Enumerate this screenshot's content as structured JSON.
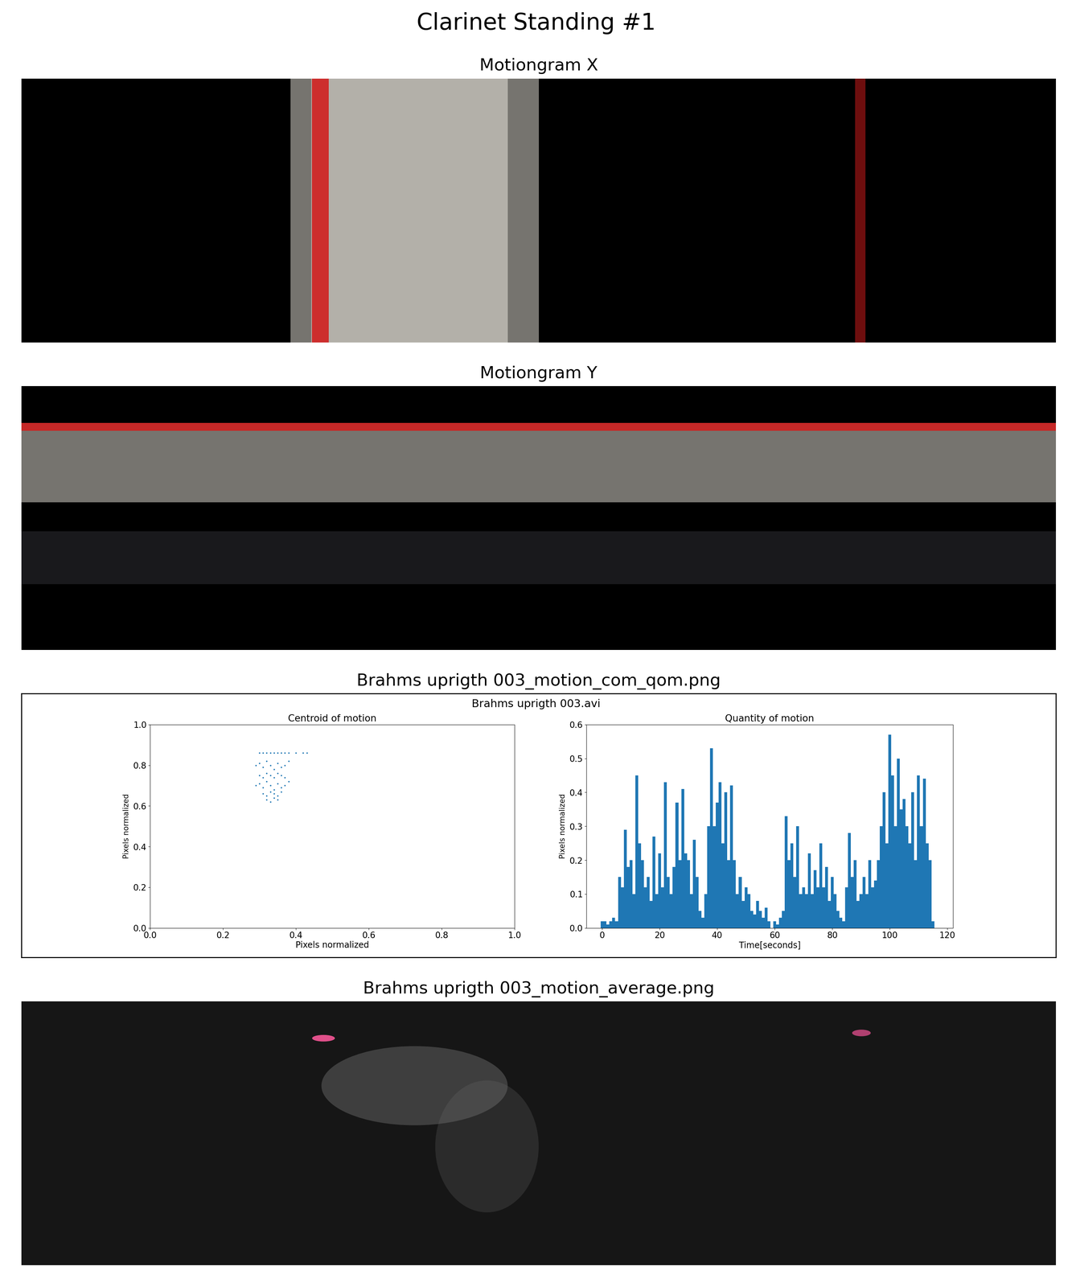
{
  "title": "Clarinet Standing #1",
  "panels": [
    {
      "title": "Motiongram X"
    },
    {
      "title": "Motiongram Y"
    },
    {
      "title": "Brahms uprigth 003_motion_com_qom.png",
      "subtitle": "Brahms uprigth 003.avi"
    },
    {
      "title": "Brahms uprigth 003_motion_average.png"
    }
  ],
  "chart_data": [
    {
      "type": "scatter",
      "title": "Centroid of motion",
      "x_label": "Pixels normalized",
      "y_label": "Pixels normalized",
      "x": [
        0.3,
        0.31,
        0.32,
        0.33,
        0.34,
        0.35,
        0.36,
        0.37,
        0.38,
        0.4,
        0.42,
        0.43,
        0.29,
        0.3,
        0.31,
        0.32,
        0.33,
        0.34,
        0.35,
        0.36,
        0.37,
        0.38,
        0.3,
        0.31,
        0.32,
        0.33,
        0.34,
        0.35,
        0.36,
        0.37,
        0.29,
        0.3,
        0.31,
        0.32,
        0.33,
        0.34,
        0.35,
        0.36,
        0.37,
        0.38,
        0.31,
        0.32,
        0.33,
        0.34,
        0.35,
        0.36,
        0.32,
        0.33,
        0.34,
        0.35
      ],
      "values": [
        0.86,
        0.86,
        0.86,
        0.86,
        0.86,
        0.86,
        0.86,
        0.86,
        0.86,
        0.86,
        0.86,
        0.86,
        0.8,
        0.81,
        0.79,
        0.82,
        0.8,
        0.78,
        0.81,
        0.79,
        0.8,
        0.82,
        0.75,
        0.74,
        0.76,
        0.75,
        0.74,
        0.76,
        0.75,
        0.74,
        0.7,
        0.71,
        0.69,
        0.72,
        0.7,
        0.68,
        0.71,
        0.69,
        0.7,
        0.72,
        0.66,
        0.65,
        0.67,
        0.66,
        0.65,
        0.67,
        0.63,
        0.62,
        0.64,
        0.63
      ],
      "color": "#1f77b4",
      "marker": "point",
      "xlim": [
        0,
        1
      ],
      "ylim": [
        0,
        1
      ],
      "xticks": [
        {
          "value": 0,
          "label": "0.0"
        },
        {
          "value": 0.2,
          "label": "0.2"
        },
        {
          "value": 0.4,
          "label": "0.4"
        },
        {
          "value": 0.6,
          "label": "0.6"
        },
        {
          "value": 0.8,
          "label": "0.8"
        },
        {
          "value": 1,
          "label": "1.0"
        }
      ],
      "yticks": [
        {
          "value": 0,
          "label": "0.0"
        },
        {
          "value": 0.2,
          "label": "0.2"
        },
        {
          "value": 0.4,
          "label": "0.4"
        },
        {
          "value": 0.6,
          "label": "0.6"
        },
        {
          "value": 0.8,
          "label": "0.8"
        },
        {
          "value": 1,
          "label": "1.0"
        }
      ]
    },
    {
      "type": "bar",
      "title": "Quantity of motion",
      "x_label": "Time[seconds]",
      "y_label": "Pixels normalized",
      "x": [
        0,
        1,
        2,
        3,
        4,
        5,
        6,
        7,
        8,
        9,
        10,
        11,
        12,
        13,
        14,
        15,
        16,
        17,
        18,
        19,
        20,
        21,
        22,
        23,
        24,
        25,
        26,
        27,
        28,
        29,
        30,
        31,
        32,
        33,
        34,
        35,
        36,
        37,
        38,
        39,
        40,
        41,
        42,
        43,
        44,
        45,
        46,
        47,
        48,
        49,
        50,
        51,
        52,
        53,
        54,
        55,
        56,
        57,
        58,
        59,
        60,
        61,
        62,
        63,
        64,
        65,
        66,
        67,
        68,
        69,
        70,
        71,
        72,
        73,
        74,
        75,
        76,
        77,
        78,
        79,
        80,
        81,
        82,
        83,
        84,
        85,
        86,
        87,
        88,
        89,
        90,
        91,
        92,
        93,
        94,
        95,
        96,
        97,
        98,
        99,
        100,
        101,
        102,
        103,
        104,
        105,
        106,
        107,
        108,
        109,
        110,
        111,
        112,
        113,
        114,
        115
      ],
      "values": [
        0.02,
        0.02,
        0.01,
        0.02,
        0.03,
        0.02,
        0.15,
        0.12,
        0.29,
        0.18,
        0.2,
        0.1,
        0.45,
        0.25,
        0.2,
        0.12,
        0.15,
        0.08,
        0.27,
        0.1,
        0.22,
        0.12,
        0.43,
        0.15,
        0.1,
        0.18,
        0.37,
        0.2,
        0.41,
        0.22,
        0.2,
        0.1,
        0.26,
        0.15,
        0.05,
        0.03,
        0.1,
        0.3,
        0.53,
        0.3,
        0.37,
        0.43,
        0.25,
        0.4,
        0.2,
        0.42,
        0.2,
        0.1,
        0.15,
        0.08,
        0.12,
        0.1,
        0.05,
        0.04,
        0.08,
        0.05,
        0.03,
        0.06,
        0.02,
        0.0,
        0.02,
        0.01,
        0.03,
        0.05,
        0.33,
        0.2,
        0.25,
        0.15,
        0.3,
        0.1,
        0.12,
        0.1,
        0.22,
        0.1,
        0.17,
        0.12,
        0.25,
        0.12,
        0.18,
        0.08,
        0.15,
        0.1,
        0.05,
        0.03,
        0.02,
        0.12,
        0.28,
        0.15,
        0.2,
        0.08,
        0.1,
        0.15,
        0.1,
        0.2,
        0.12,
        0.14,
        0.2,
        0.3,
        0.4,
        0.25,
        0.57,
        0.45,
        0.3,
        0.5,
        0.35,
        0.38,
        0.3,
        0.25,
        0.4,
        0.2,
        0.45,
        0.3,
        0.44,
        0.25,
        0.2,
        0.02
      ],
      "color": "#1f77b4",
      "xlim": [
        -5.5,
        122
      ],
      "ylim": [
        0,
        0.6
      ],
      "xticks": [
        0,
        20,
        40,
        60,
        80,
        100,
        120
      ],
      "yticks": [
        {
          "value": 0,
          "label": "0.0"
        },
        {
          "value": 0.1,
          "label": "0.1"
        },
        {
          "value": 0.2,
          "label": "0.2"
        },
        {
          "value": 0.3,
          "label": "0.3"
        },
        {
          "value": 0.4,
          "label": "0.4"
        },
        {
          "value": 0.5,
          "label": "0.5"
        },
        {
          "value": 0.6,
          "label": "0.6"
        }
      ]
    }
  ]
}
